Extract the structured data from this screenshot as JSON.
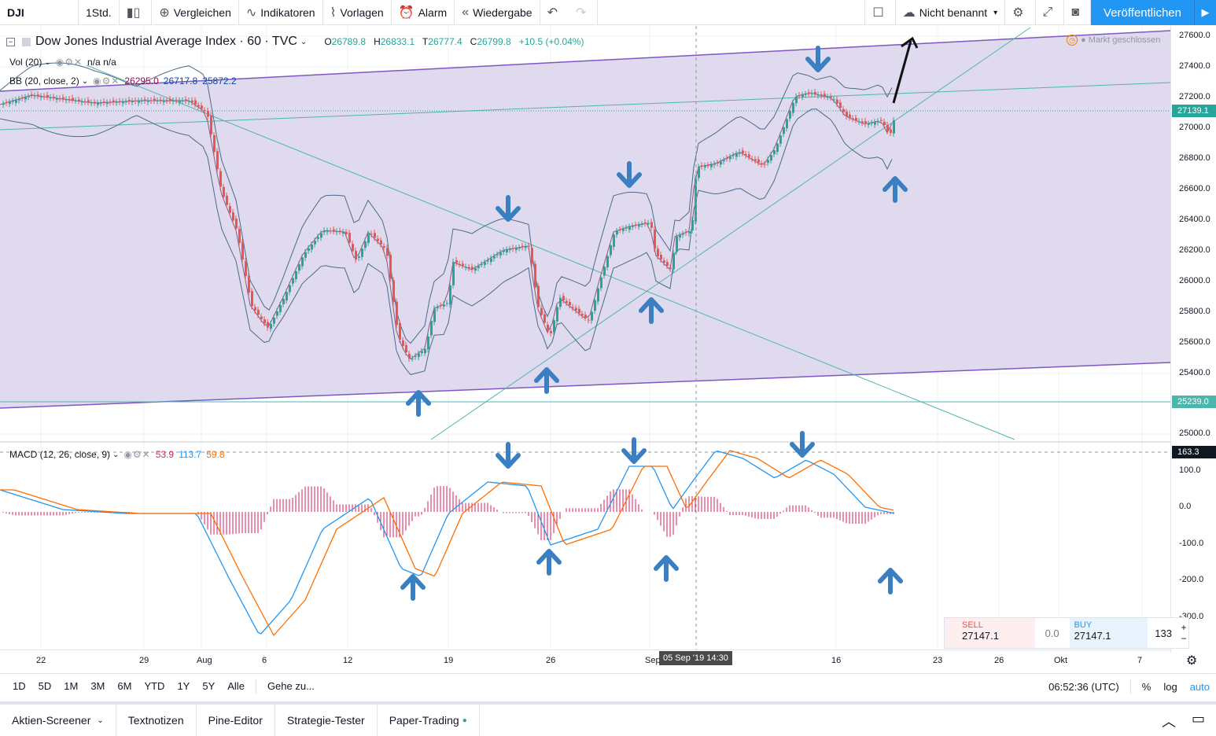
{
  "toolbar": {
    "symbol": "DJI",
    "interval": "1Std.",
    "compare": "Vergleichen",
    "indicators": "Indikatoren",
    "templates": "Vorlagen",
    "alert": "Alarm",
    "replay": "Wiedergabe",
    "layout_name": "Nicht benannt",
    "publish": "Veröffentlichen"
  },
  "legend": {
    "title": "Dow Jones Industrial Average Index · 60 · TVC",
    "open_k": "O",
    "open": "26789.8",
    "high_k": "H",
    "high": "26833.1",
    "low_k": "T",
    "low": "26777.4",
    "close_k": "C",
    "close": "26799.8",
    "change": "+10.5 (+0.04%)",
    "vol_label": "Vol (20)",
    "vol_values": "n/a  n/a",
    "bb_label": "BB (20, close, 2)",
    "bb_basis": "26295.0",
    "bb_upper": "26717.8",
    "bb_lower": "25872.2",
    "macd_label": "MACD (12, 26, close, 9)",
    "macd_hist": "53.9",
    "macd_line": "113.7",
    "macd_signal": "59.8",
    "market_status": "Markt geschlossen"
  },
  "price_axis": {
    "labels": [
      "27600.0",
      "27400.0",
      "27200.0",
      "27000.0",
      "26800.0",
      "26600.0",
      "26400.0",
      "26200.0",
      "26000.0",
      "25800.0",
      "25600.0",
      "25400.0",
      "25000.0"
    ],
    "current_price": "27139.1",
    "level_price": "25239.0",
    "macd_labels": [
      "100.0",
      "0.0",
      "-100.0",
      "-200.0",
      "-300.0"
    ],
    "macd_current": "163.3"
  },
  "time_axis": {
    "labels": [
      "22",
      "29",
      "Aug",
      "6",
      "12",
      "19",
      "26",
      "Sep",
      "16",
      "23",
      "26",
      "Okt",
      "7"
    ],
    "crosshair": "05 Sep '19   14:30"
  },
  "range_bar": {
    "items": [
      "1D",
      "5D",
      "1M",
      "3M",
      "6M",
      "YTD",
      "1Y",
      "5Y",
      "Alle"
    ],
    "goto": "Gehe zu...",
    "clock": "06:52:36 (UTC)",
    "percent": "%",
    "log": "log",
    "auto": "auto"
  },
  "panel_tabs": [
    "Aktien-Screener",
    "Textnotizen",
    "Pine-Editor",
    "Strategie-Tester",
    "Paper-Trading"
  ],
  "trade": {
    "sell_label": "SELL",
    "sell_price": "27147.1",
    "spread": "0.0",
    "buy_label": "BUY",
    "buy_price": "27147.1",
    "qty": "133"
  },
  "colors": {
    "up": "#26a69a",
    "down": "#ef5350",
    "channel": "#7e57c2",
    "channel_fill": "#d9d3eb",
    "bb": "#4a6b8a",
    "macd": "#2196f3",
    "signal": "#ff6d00",
    "hist": "#d81b60",
    "arrow": "#3a7fc1",
    "accent": "#2196f3"
  }
}
